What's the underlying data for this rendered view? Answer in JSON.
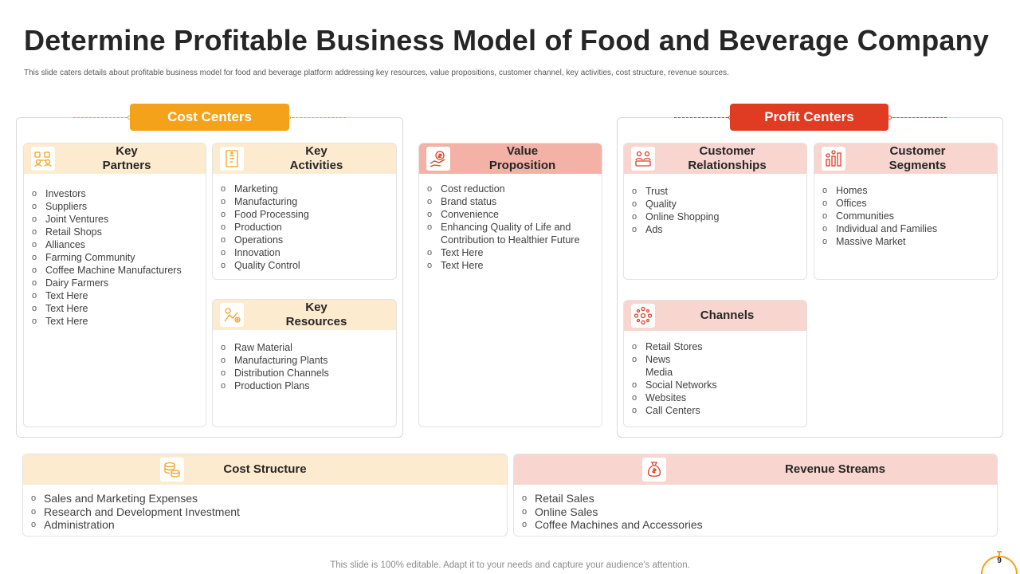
{
  "header": {
    "title": "Determine Profitable Business Model of Food and Beverage Company",
    "subtitle": "This slide caters details about profitable business model  for food and beverage platform addressing key resources, value propositions, customer channel, key activities, cost structure, revenue sources."
  },
  "groups": {
    "cost_label": "Cost Centers",
    "profit_label": "Profit Centers"
  },
  "colors": {
    "cost_accent": "#f5a21b",
    "profit_accent": "#e03c23",
    "cost_head": "#fdebd0",
    "value_head": "#f4b1a5",
    "profit_head": "#f8d5cf"
  },
  "key_partners": {
    "title": "Key\nPartners",
    "icon": "partners-icon",
    "items": [
      "Investors",
      "Suppliers",
      "Joint Ventures",
      "Retail Shops",
      "Alliances",
      "Farming Community",
      "Coffee  Machine Manufacturers",
      "Dairy Farmers",
      "Text Here",
      "Text Here",
      "Text Here"
    ]
  },
  "key_activities": {
    "title": "Key\nActivities",
    "icon": "activities-icon",
    "items": [
      "Marketing",
      "Manufacturing",
      "Food Processing",
      "Production",
      "Operations",
      "Innovation",
      "Quality Control"
    ]
  },
  "key_resources": {
    "title": "Key\nResources",
    "icon": "resources-icon",
    "items": [
      "Raw Material",
      "Manufacturing  Plants",
      "Distribution Channels",
      "Production Plans"
    ]
  },
  "value_proposition": {
    "title": "Value\nProposition",
    "icon": "value-icon",
    "items": [
      "Cost reduction",
      "Brand status",
      "Convenience",
      "Enhancing Quality of Life and Contribution to Healthier Future",
      "Text Here",
      "Text Here"
    ]
  },
  "customer_relationships": {
    "title": "Customer\nRelationships",
    "icon": "relationships-icon",
    "items": [
      "Trust",
      "Quality",
      "Online Shopping",
      "Ads"
    ]
  },
  "customer_segments": {
    "title": "Customer\nSegments",
    "icon": "segments-icon",
    "items": [
      "Homes",
      "Offices",
      "Communities",
      "Individual  and Families",
      "Massive Market"
    ]
  },
  "channels": {
    "title": "Channels",
    "icon": "channels-icon",
    "items": [
      "Retail Stores",
      "News\nMedia",
      "Social Networks",
      "Websites",
      "Call Centers"
    ]
  },
  "cost_structure": {
    "title": "Cost Structure",
    "icon": "coins-icon",
    "items": [
      "Sales and Marketing Expenses",
      "Research and Development Investment",
      "Administration"
    ]
  },
  "revenue_streams": {
    "title": "Revenue Streams",
    "icon": "money-bag-icon",
    "items": [
      "Retail Sales",
      "Online Sales",
      "Coffee Machines and Accessories"
    ]
  },
  "footer": {
    "note": "This slide is 100% editable. Adapt it to your needs and capture your audience's attention.",
    "page": "9"
  }
}
